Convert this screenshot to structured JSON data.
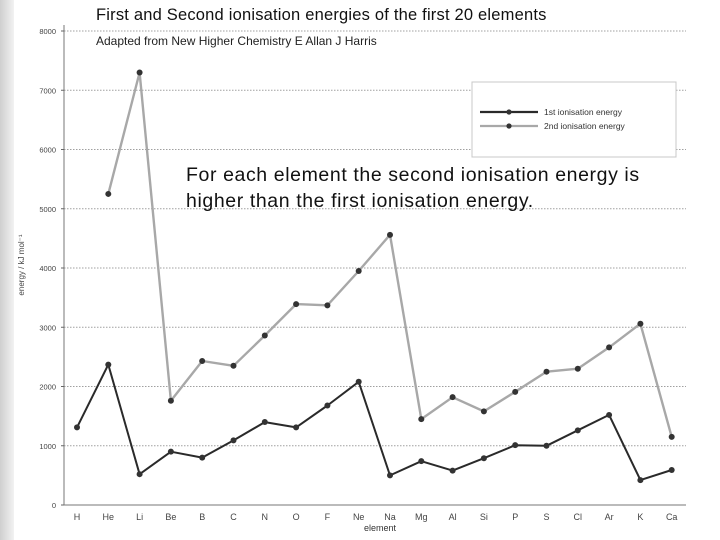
{
  "header": {
    "title": "First and Second ionisation energies of the first 20 elements",
    "subtitle": "Adapted from New Higher Chemistry E Allan J Harris"
  },
  "annotation": "For each element the second ionisation energy is higher than the first ionisation energy.",
  "chart_data": {
    "type": "line",
    "xlabel": "element",
    "ylabel": "energy / kJ mol⁻¹",
    "ylim": [
      0,
      8000
    ],
    "yticks": [
      0,
      1000,
      2000,
      3000,
      4000,
      5000,
      6000,
      7000,
      8000
    ],
    "categories": [
      "H",
      "He",
      "Li",
      "Be",
      "B",
      "C",
      "N",
      "O",
      "F",
      "Ne",
      "Na",
      "Mg",
      "Al",
      "Si",
      "P",
      "S",
      "Cl",
      "Ar",
      "K",
      "Ca"
    ],
    "grid": true,
    "legend_position": "top-right",
    "series": [
      {
        "name": "1st ionisation energy",
        "color": "#2a2a2a",
        "values": [
          1310,
          2370,
          520,
          900,
          800,
          1090,
          1400,
          1310,
          1680,
          2080,
          500,
          740,
          580,
          790,
          1010,
          1000,
          1260,
          1520,
          420,
          590
        ]
      },
      {
        "name": "2nd ionisation energy",
        "color": "#a8a8a8",
        "values": [
          null,
          5250,
          7300,
          1760,
          2430,
          2350,
          2860,
          3390,
          3370,
          3950,
          4560,
          1450,
          1820,
          1580,
          1910,
          2250,
          2300,
          2660,
          3060,
          1150
        ]
      }
    ]
  }
}
